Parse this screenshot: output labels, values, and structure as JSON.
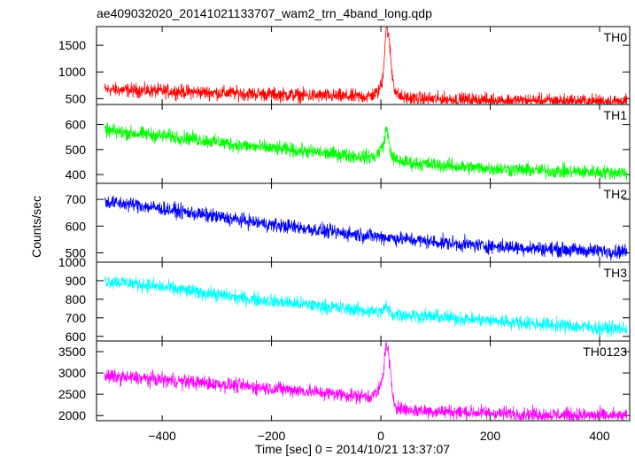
{
  "chart_data": {
    "type": "line",
    "title": "ae409032020_20141021133707_wam2_trn_4band_long.qdp",
    "xlabel": "Time [sec] 0 = 2014/10/21 13:37:07",
    "ylabel": "Counts/sec",
    "xlim": [
      -520,
      455
    ],
    "x_ticks": [
      -400,
      -200,
      0,
      200,
      400
    ],
    "x_tick_labels": [
      "−400",
      "−200",
      "0",
      "200",
      "400"
    ],
    "panels": [
      {
        "label": "TH0",
        "color": "#ff0000",
        "ylim": [
          390,
          1850
        ],
        "y_ticks": [
          500,
          1000,
          1500
        ],
        "y_tick_labels": [
          "500",
          "1000",
          "1500"
        ],
        "series": [
          {
            "x": [
              -505,
              -450,
              -400,
              -350,
              -300,
              -250,
              -200,
              -150,
              -100,
              -50,
              -20,
              -5,
              2,
              5,
              8,
              10,
              13,
              16,
              20,
              25,
              30,
              40,
              60,
              100,
              150,
              200,
              250,
              300,
              350,
              400,
              450
            ],
            "values": [
              670,
              655,
              640,
              625,
              610,
              595,
              580,
              565,
              550,
              535,
              545,
              620,
              800,
              1100,
              1600,
              1850,
              1750,
              1500,
              1000,
              700,
              580,
              520,
              500,
              490,
              480,
              470,
              465,
              460,
              455,
              450,
              445
            ]
          }
        ]
      },
      {
        "label": "TH1",
        "color": "#00ff00",
        "ylim": [
          365,
          680
        ],
        "y_ticks": [
          400,
          500,
          600
        ],
        "y_tick_labels": [
          "400",
          "500",
          "600"
        ],
        "series": [
          {
            "x": [
              -505,
              -450,
              -400,
              -350,
              -300,
              -250,
              -200,
              -150,
              -100,
              -50,
              -10,
              5,
              10,
              15,
              20,
              30,
              60,
              100,
              150,
              200,
              250,
              300,
              350,
              400,
              450
            ],
            "values": [
              575,
              565,
              555,
              545,
              530,
              515,
              505,
              495,
              485,
              475,
              470,
              520,
              590,
              530,
              470,
              455,
              445,
              440,
              430,
              425,
              420,
              415,
              412,
              410,
              408
            ]
          }
        ]
      },
      {
        "label": "TH2",
        "color": "#0000ff",
        "ylim": [
          465,
          760
        ],
        "y_ticks": [
          500,
          600,
          700
        ],
        "y_tick_labels": [
          "500",
          "600",
          "700"
        ],
        "series": [
          {
            "x": [
              -505,
              -450,
              -400,
              -350,
              -300,
              -250,
              -200,
              -150,
              -100,
              -50,
              0,
              50,
              100,
              150,
              200,
              250,
              300,
              350,
              400,
              450
            ],
            "values": [
              690,
              680,
              665,
              650,
              635,
              620,
              605,
              595,
              580,
              570,
              560,
              550,
              540,
              532,
              525,
              520,
              515,
              510,
              507,
              505
            ]
          }
        ]
      },
      {
        "label": "TH3",
        "color": "#00ffff",
        "ylim": [
          575,
          1000
        ],
        "y_ticks": [
          600,
          700,
          800,
          900,
          1000
        ],
        "y_tick_labels": [
          "600",
          "700",
          "800",
          "900",
          "1000"
        ],
        "series": [
          {
            "x": [
              -505,
              -450,
              -400,
              -350,
              -300,
              -250,
              -200,
              -150,
              -100,
              -50,
              0,
              10,
              20,
              50,
              100,
              150,
              200,
              250,
              300,
              350,
              400,
              450
            ],
            "values": [
              900,
              885,
              865,
              845,
              825,
              805,
              790,
              775,
              760,
              745,
              730,
              760,
              720,
              715,
              705,
              695,
              685,
              675,
              665,
              655,
              645,
              640
            ]
          }
        ]
      },
      {
        "label": "TH0123",
        "color": "#ff00ff",
        "ylim": [
          1880,
          3750
        ],
        "y_ticks": [
          2000,
          2500,
          3000,
          3500
        ],
        "y_tick_labels": [
          "2000",
          "2500",
          "3000",
          "3500"
        ],
        "series": [
          {
            "x": [
              -505,
              -450,
              -400,
              -350,
              -300,
              -250,
              -200,
              -150,
              -100,
              -50,
              -20,
              -5,
              2,
              5,
              8,
              10,
              13,
              16,
              20,
              25,
              30,
              40,
              60,
              100,
              150,
              200,
              250,
              300,
              350,
              400,
              450
            ],
            "values": [
              2920,
              2880,
              2840,
              2790,
              2740,
              2690,
              2640,
              2590,
              2530,
              2470,
              2450,
              2550,
              2800,
              3100,
              3500,
              3700,
              3550,
              3200,
              2600,
              2300,
              2200,
              2150,
              2120,
              2100,
              2080,
              2060,
              2040,
              2020,
              2010,
              2000,
              1990
            ]
          }
        ]
      }
    ]
  }
}
